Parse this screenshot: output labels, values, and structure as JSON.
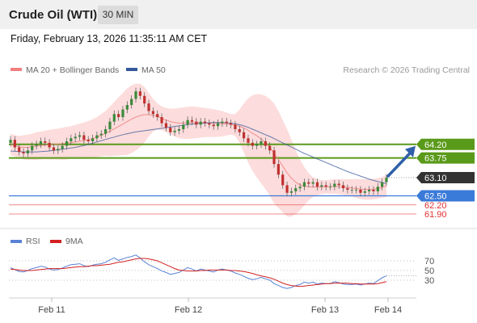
{
  "header": {
    "title": "Crude Oil (WTI)",
    "timeframe": "30 MIN"
  },
  "datetime": "Friday, February 13, 2026 11:35:11 AM CET",
  "legend": {
    "bollinger_label": "MA 20 + Bollinger Bands",
    "ma50_label": "MA 50",
    "copyright": "Research © 2026 Trading Central"
  },
  "colors": {
    "bollinger": "#f08080",
    "band_fill": "#fcdcdc",
    "ma50": "#34589a",
    "resistance": "#5a9a1a",
    "support": "#3a7ad8",
    "minor_level": "#e03030",
    "current": "#333333",
    "arrow": "#2f5fa8",
    "rsi": "#5a82d6",
    "rsi_ma": "#d42020",
    "candle_up": "#3a8a3a",
    "candle_down": "#c03030"
  },
  "chart_data": [
    {
      "type": "candlestick",
      "ylim": [
        61.5,
        66.3
      ],
      "x_ticks": [
        "Feb 11",
        "Feb 12",
        "Feb 13",
        "Feb 14"
      ],
      "levels": [
        {
          "value": 64.2,
          "label": "64.20",
          "kind": "resistance"
        },
        {
          "value": 63.75,
          "label": "63.75",
          "kind": "resistance"
        },
        {
          "value": 63.1,
          "label": "63.10",
          "kind": "current"
        },
        {
          "value": 62.5,
          "label": "62.50",
          "kind": "support"
        },
        {
          "value": 62.2,
          "label": "62.20",
          "kind": "minor"
        },
        {
          "value": 61.9,
          "label": "61.90",
          "kind": "minor"
        }
      ],
      "close": [
        64.35,
        64.1,
        63.95,
        63.9,
        64.0,
        64.15,
        64.2,
        64.3,
        64.25,
        64.1,
        64.0,
        64.05,
        64.15,
        64.3,
        64.4,
        64.45,
        64.5,
        64.35,
        64.3,
        64.4,
        64.5,
        64.55,
        64.7,
        64.95,
        65.2,
        65.1,
        65.35,
        65.5,
        65.7,
        65.95,
        65.8,
        65.55,
        65.3,
        65.2,
        65.1,
        64.9,
        64.75,
        64.6,
        64.65,
        64.7,
        64.85,
        65.0,
        64.95,
        64.85,
        64.95,
        64.9,
        64.85,
        64.8,
        64.9,
        64.95,
        64.9,
        64.85,
        64.7,
        64.6,
        64.4,
        64.25,
        64.15,
        64.2,
        64.3,
        64.15,
        64.0,
        63.55,
        63.2,
        62.85,
        62.6,
        62.65,
        62.75,
        62.8,
        62.95,
        62.9,
        62.95,
        62.8,
        62.85,
        62.8,
        62.8,
        62.9,
        62.85,
        62.75,
        62.7,
        62.7,
        62.7,
        62.6,
        62.65,
        62.7,
        62.65,
        62.8,
        62.95,
        63.1
      ],
      "ma20": [
        64.2,
        64.15,
        64.12,
        64.1,
        64.1,
        64.12,
        64.14,
        64.16,
        64.18,
        64.19,
        64.2,
        64.21,
        64.22,
        64.24,
        64.26,
        64.28,
        64.3,
        64.32,
        64.35,
        64.39,
        64.44,
        64.5,
        64.56,
        64.63,
        64.71,
        64.79,
        64.87,
        64.95,
        65.03,
        65.1,
        65.15,
        65.18,
        65.18,
        65.16,
        65.12,
        65.06,
        65.0,
        64.95,
        64.92,
        64.9,
        64.9,
        64.91,
        64.92,
        64.92,
        64.92,
        64.92,
        64.91,
        64.9,
        64.89,
        64.88,
        64.87,
        64.86,
        64.84,
        64.8,
        64.74,
        64.66,
        64.57,
        64.48,
        64.38,
        64.26,
        64.1,
        63.9,
        63.7,
        63.48,
        63.26,
        63.08,
        62.95,
        62.86,
        62.82,
        62.8,
        62.79,
        62.79,
        62.79,
        62.8,
        62.8,
        62.81,
        62.8,
        62.79,
        62.78,
        62.76,
        62.74,
        62.72,
        62.71,
        62.71,
        62.72,
        62.74,
        62.78,
        62.83
      ],
      "bb_upper": [
        64.55,
        64.5,
        64.48,
        64.5,
        64.52,
        64.55,
        64.6,
        64.62,
        64.65,
        64.68,
        64.7,
        64.72,
        64.75,
        64.78,
        64.8,
        64.84,
        64.88,
        64.92,
        64.97,
        65.03,
        65.1,
        65.2,
        65.3,
        65.45,
        65.6,
        65.75,
        65.9,
        66.05,
        66.15,
        66.2,
        66.2,
        66.1,
        65.9,
        65.7,
        65.55,
        65.45,
        65.4,
        65.38,
        65.38,
        65.4,
        65.42,
        65.44,
        65.45,
        65.44,
        65.42,
        65.4,
        65.38,
        65.36,
        65.33,
        65.3,
        65.25,
        65.2,
        65.2,
        65.35,
        65.55,
        65.72,
        65.82,
        65.86,
        65.85,
        65.8,
        65.7,
        65.55,
        65.3,
        65.0,
        64.7,
        64.35,
        64.0,
        63.7,
        63.45,
        63.25,
        63.12,
        63.05,
        63.02,
        63.02,
        63.03,
        63.05,
        63.05,
        63.05,
        63.05,
        63.05,
        63.05,
        63.05,
        63.05,
        63.05,
        63.06,
        63.08,
        63.12,
        63.2
      ],
      "bb_lower": [
        63.85,
        63.8,
        63.76,
        63.7,
        63.68,
        63.69,
        63.68,
        63.7,
        63.71,
        63.7,
        63.7,
        63.7,
        63.69,
        63.7,
        63.72,
        63.72,
        63.72,
        63.72,
        63.73,
        63.75,
        63.78,
        63.8,
        63.82,
        63.81,
        63.82,
        63.83,
        63.84,
        63.85,
        63.91,
        64.0,
        64.1,
        64.26,
        64.46,
        64.62,
        64.69,
        64.67,
        64.6,
        64.52,
        64.46,
        64.4,
        64.38,
        64.38,
        64.39,
        64.4,
        64.42,
        64.44,
        64.44,
        64.44,
        64.45,
        64.46,
        64.49,
        64.52,
        64.48,
        64.25,
        63.93,
        63.6,
        63.32,
        63.1,
        62.91,
        62.72,
        62.5,
        62.25,
        62.1,
        61.96,
        61.82,
        61.81,
        61.9,
        62.02,
        62.19,
        62.35,
        62.46,
        62.53,
        62.56,
        62.58,
        62.57,
        62.57,
        62.55,
        62.53,
        62.51,
        62.47,
        62.43,
        62.39,
        62.37,
        62.37,
        62.38,
        62.4,
        62.44,
        62.46
      ],
      "ma50": [
        63.98,
        63.97,
        63.96,
        63.95,
        63.95,
        63.95,
        63.95,
        63.96,
        63.97,
        63.98,
        64.0,
        64.02,
        64.04,
        64.06,
        64.08,
        64.1,
        64.13,
        64.16,
        64.2,
        64.24,
        64.28,
        64.32,
        64.36,
        64.4,
        64.44,
        64.48,
        64.52,
        64.55,
        64.58,
        64.61,
        64.63,
        64.65,
        64.67,
        64.69,
        64.71,
        64.73,
        64.75,
        64.77,
        64.79,
        64.81,
        64.83,
        64.85,
        64.87,
        64.88,
        64.89,
        64.9,
        64.91,
        64.92,
        64.92,
        64.92,
        64.91,
        64.9,
        64.88,
        64.85,
        64.81,
        64.76,
        64.7,
        64.64,
        64.58,
        64.52,
        64.46,
        64.39,
        64.32,
        64.25,
        64.18,
        64.11,
        64.04,
        63.97,
        63.9,
        63.84,
        63.78,
        63.72,
        63.66,
        63.6,
        63.54,
        63.48,
        63.42,
        63.36,
        63.3,
        63.25,
        63.2,
        63.15,
        63.1,
        63.05,
        63.01,
        62.97,
        62.94,
        62.9
      ]
    },
    {
      "type": "line",
      "series": [
        {
          "name": "RSI",
          "values": [
            56,
            52,
            48,
            47,
            50,
            54,
            56,
            59,
            57,
            53,
            51,
            52,
            55,
            59,
            62,
            63,
            64,
            60,
            58,
            61,
            63,
            64,
            67,
            72,
            76,
            71,
            74,
            77,
            79,
            82,
            76,
            68,
            62,
            58,
            54,
            49,
            46,
            42,
            44,
            46,
            51,
            56,
            53,
            49,
            53,
            51,
            49,
            47,
            51,
            53,
            51,
            49,
            45,
            42,
            38,
            34,
            31,
            33,
            36,
            33,
            30,
            23,
            19,
            15,
            13,
            15,
            19,
            21,
            26,
            24,
            26,
            22,
            24,
            23,
            23,
            27,
            25,
            22,
            21,
            21,
            22,
            20,
            22,
            24,
            23,
            29,
            35,
            39
          ]
        },
        {
          "name": "9MA",
          "values": [
            53,
            52,
            51,
            50,
            50,
            50,
            51,
            52,
            53,
            54,
            54,
            54,
            54,
            55,
            56,
            57,
            58,
            58,
            59,
            60,
            60,
            61,
            62,
            63,
            65,
            67,
            68,
            70,
            72,
            74,
            75,
            75,
            74,
            72,
            70,
            66,
            62,
            58,
            54,
            51,
            50,
            49,
            49,
            49,
            50,
            50,
            51,
            51,
            51,
            51,
            51,
            50,
            50,
            49,
            48,
            46,
            44,
            41,
            39,
            37,
            35,
            32,
            28,
            24,
            21,
            19,
            18,
            17,
            18,
            19,
            20,
            21,
            22,
            23,
            23,
            24,
            24,
            24,
            24,
            23,
            23,
            22,
            22,
            22,
            22,
            23,
            25,
            27
          ]
        }
      ],
      "ylim": [
        0,
        100
      ],
      "y_ticks": [
        "70",
        "50",
        "30"
      ],
      "x_ticks": [
        "Feb 11",
        "Feb 12",
        "Feb 13",
        "Feb 14"
      ]
    }
  ]
}
